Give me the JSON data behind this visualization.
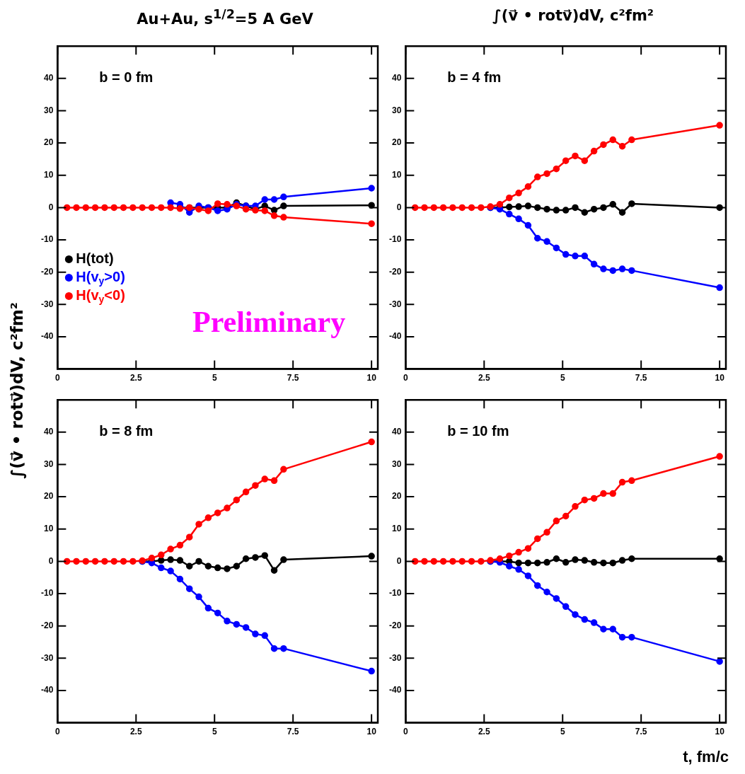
{
  "chart_data": [
    {
      "type": "line",
      "title": "Au+Au, s$^{1/2}$=5 A GeV",
      "ylabel": "∫(v⃗ • rotv⃗)dV, c²fm²",
      "annotations": [
        "b = 0 fm",
        "Preliminary"
      ],
      "legend": "left",
      "marker": "circle",
      "line_style": "solid",
      "xlim": [
        0,
        10.2
      ],
      "ylim": [
        -50,
        50
      ],
      "xticks": [
        0,
        2.5,
        5,
        7.5,
        10
      ],
      "yticks": [
        -40,
        -30,
        -20,
        -10,
        0,
        10,
        20,
        30,
        40
      ],
      "x": [
        0.3,
        0.6,
        0.9,
        1.2,
        1.5,
        1.8,
        2.1,
        2.4,
        2.7,
        3.0,
        3.3,
        3.6,
        3.9,
        4.2,
        4.5,
        4.8,
        5.1,
        5.4,
        5.7,
        6.0,
        6.3,
        6.6,
        6.9,
        7.2,
        10
      ],
      "series": [
        {
          "name": "H(tot)",
          "color": "#000000",
          "values": [
            null,
            null,
            null,
            null,
            null,
            null,
            null,
            null,
            null,
            null,
            null,
            null,
            0,
            0,
            0,
            0,
            0,
            0,
            1.5,
            0.5,
            -0.5,
            0.5,
            -0.8,
            0.5,
            0.7
          ]
        },
        {
          "name": "H(v$_{y}$>0)",
          "color": "#0000ff",
          "values": [
            null,
            null,
            null,
            null,
            null,
            null,
            null,
            null,
            null,
            null,
            null,
            1.5,
            1.0,
            -1.5,
            0.5,
            0,
            -1,
            -0.5,
            1,
            0.5,
            0.5,
            2.5,
            2.5,
            3.3,
            6
          ]
        },
        {
          "name": "H(v$_{y}$<0)",
          "color": "#ff0000",
          "values": [
            0,
            0,
            0,
            0,
            0,
            0,
            0,
            0,
            0,
            0,
            0,
            0,
            -0.3,
            0,
            -0.5,
            -1,
            1.2,
            1,
            0.5,
            -0.5,
            -0.8,
            -1,
            -2.5,
            -3,
            -5
          ]
        }
      ]
    },
    {
      "type": "line",
      "title": "∫(v⃗ • rotv⃗)dV, c²fm²",
      "annotations": [
        "b = 4 fm"
      ],
      "marker": "circle",
      "line_style": "solid",
      "xlim": [
        0,
        10.2
      ],
      "ylim": [
        -50,
        50
      ],
      "xticks": [
        0,
        2.5,
        5,
        7.5,
        10
      ],
      "yticks": [
        -40,
        -30,
        -20,
        -10,
        0,
        10,
        20,
        30,
        40
      ],
      "x": [
        0.3,
        0.6,
        0.9,
        1.2,
        1.5,
        1.8,
        2.1,
        2.4,
        2.7,
        3.0,
        3.3,
        3.6,
        3.9,
        4.2,
        4.5,
        4.8,
        5.1,
        5.4,
        5.7,
        6.0,
        6.3,
        6.6,
        6.9,
        7.2,
        10
      ],
      "series": [
        {
          "color": "#000000",
          "values": [
            null,
            null,
            null,
            null,
            null,
            null,
            null,
            null,
            0,
            0,
            0.2,
            0.3,
            0.5,
            0,
            -0.5,
            -0.8,
            -0.8,
            0,
            -1.5,
            -0.5,
            0,
            1,
            -1.5,
            1.2,
            0
          ]
        },
        {
          "color": "#0000ff",
          "values": [
            null,
            null,
            null,
            null,
            null,
            null,
            null,
            null,
            0,
            -0.5,
            -2,
            -3.5,
            -5.5,
            -9.5,
            -10.5,
            -12.5,
            -14.5,
            -15,
            -15,
            -17.5,
            -19,
            -19.5,
            -19,
            -19.5,
            -24.8
          ]
        },
        {
          "color": "#ff0000",
          "values": [
            0,
            0,
            0,
            0,
            0,
            0,
            0,
            0,
            0.3,
            1,
            3,
            4.5,
            6.5,
            9.5,
            10.5,
            12,
            14.5,
            16,
            14.5,
            17.5,
            19.5,
            21,
            19,
            21,
            25.5
          ]
        }
      ]
    },
    {
      "type": "line",
      "annotations": [
        "b = 8 fm"
      ],
      "marker": "circle",
      "line_style": "solid",
      "xlim": [
        0,
        10.2
      ],
      "ylim": [
        -50,
        50
      ],
      "xticks": [
        0,
        2.5,
        5,
        7.5,
        10
      ],
      "yticks": [
        -40,
        -30,
        -20,
        -10,
        0,
        10,
        20,
        30,
        40
      ],
      "x": [
        0.3,
        0.6,
        0.9,
        1.2,
        1.5,
        1.8,
        2.1,
        2.4,
        2.7,
        3.0,
        3.3,
        3.6,
        3.9,
        4.2,
        4.5,
        4.8,
        5.1,
        5.4,
        5.7,
        6.0,
        6.3,
        6.6,
        6.9,
        7.2,
        10
      ],
      "series": [
        {
          "color": "#000000",
          "values": [
            null,
            null,
            null,
            null,
            null,
            null,
            null,
            null,
            0,
            0,
            0.3,
            0.5,
            0.3,
            -1.5,
            0,
            -1.5,
            -2,
            -2.3,
            -1.5,
            0.8,
            1.2,
            1.8,
            -2.8,
            0.5,
            1.6
          ]
        },
        {
          "color": "#0000ff",
          "values": [
            null,
            null,
            null,
            null,
            null,
            null,
            null,
            null,
            0,
            -0.5,
            -2,
            -3,
            -5.5,
            -8.5,
            -11,
            -14.5,
            -16,
            -18.5,
            -19.5,
            -20.5,
            -22.5,
            -23,
            -27,
            -27,
            -34
          ]
        },
        {
          "color": "#ff0000",
          "values": [
            0,
            0,
            0,
            0,
            0,
            0,
            0,
            0,
            0.2,
            1,
            2,
            3.8,
            5,
            7.5,
            11.5,
            13.5,
            15,
            16.5,
            19,
            21.5,
            23.5,
            25.5,
            25,
            28.5,
            37
          ]
        }
      ]
    },
    {
      "type": "line",
      "xlabel": "t, fm/c",
      "annotations": [
        "b = 10 fm"
      ],
      "marker": "circle",
      "line_style": "solid",
      "xlim": [
        0,
        10.2
      ],
      "ylim": [
        -50,
        50
      ],
      "xticks": [
        0,
        2.5,
        5,
        7.5,
        10
      ],
      "yticks": [
        -40,
        -30,
        -20,
        -10,
        0,
        10,
        20,
        30,
        40
      ],
      "x": [
        0.3,
        0.6,
        0.9,
        1.2,
        1.5,
        1.8,
        2.1,
        2.4,
        2.7,
        3.0,
        3.3,
        3.6,
        3.9,
        4.2,
        4.5,
        4.8,
        5.1,
        5.4,
        5.7,
        6.0,
        6.3,
        6.6,
        6.9,
        7.2,
        10
      ],
      "series": [
        {
          "color": "#000000",
          "values": [
            null,
            null,
            null,
            null,
            null,
            null,
            null,
            null,
            0,
            0,
            0,
            -0.5,
            -0.5,
            -0.5,
            -0.3,
            0.8,
            -0.3,
            0.5,
            0.3,
            -0.3,
            -0.5,
            -0.5,
            0.3,
            0.8,
            0.8
          ]
        },
        {
          "color": "#0000ff",
          "values": [
            null,
            null,
            null,
            null,
            null,
            null,
            null,
            null,
            0,
            -0.3,
            -1.5,
            -2.5,
            -4.5,
            -7.5,
            -9.5,
            -11.5,
            -14,
            -16.5,
            -18,
            -19,
            -21,
            -21,
            -23.5,
            -23.5,
            -31
          ]
        },
        {
          "color": "#ff0000",
          "values": [
            0,
            0,
            0,
            0,
            0,
            0,
            0,
            0,
            0.3,
            0.8,
            1.7,
            2.8,
            4,
            7,
            9,
            12.5,
            14,
            17,
            19,
            19.5,
            21,
            21,
            24.5,
            25,
            32.5
          ]
        }
      ]
    }
  ]
}
